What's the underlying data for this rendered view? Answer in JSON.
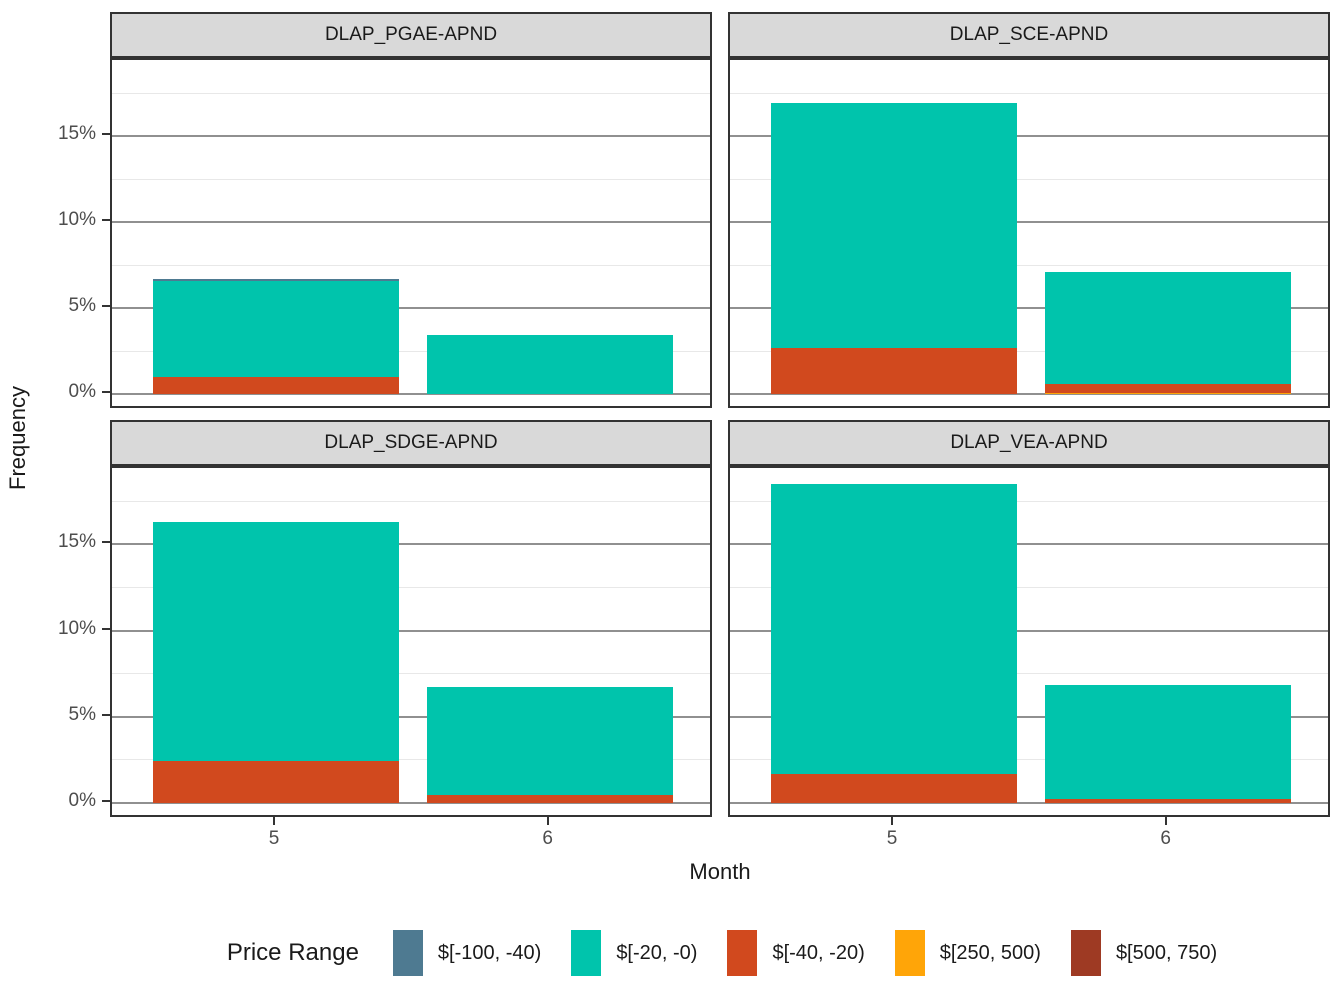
{
  "figure": {
    "y_axis_title": "Frequency",
    "x_axis_title": "Month"
  },
  "legend": {
    "title": "Price Range",
    "items": [
      {
        "label": "$[-100, -40)",
        "color": "#4e7a91"
      },
      {
        "label": "$[-20, -0)",
        "color": "#00c4ac"
      },
      {
        "label": "$[-40, -20)",
        "color": "#d1491e"
      },
      {
        "label": "$[250, 500)",
        "color": "#ffa508"
      },
      {
        "label": "$[500, 750)",
        "color": "#9e3a23"
      }
    ]
  },
  "chart_data": {
    "type": "bar",
    "stacked": true,
    "title": "",
    "xlabel": "Month",
    "ylabel": "Frequency",
    "categories": [
      "5",
      "6"
    ],
    "ylim": [
      -0.93,
      19.43
    ],
    "y_ticks": [
      {
        "value": 0,
        "label": "0%"
      },
      {
        "value": 5,
        "label": "5%"
      },
      {
        "value": 10,
        "label": "10%"
      },
      {
        "value": 15,
        "label": "15%"
      }
    ],
    "y_minor_ticks": [
      2.5,
      7.5,
      12.5,
      17.5
    ],
    "grid": "horizontal-only",
    "legend_position": "bottom",
    "stack_order_bottom_to_top": [
      "$[500, 750)",
      "$[250, 500)",
      "$[-40, -20)",
      "$[-20, -0)",
      "$[-100, -40)"
    ],
    "facets": [
      {
        "title": "DLAP_PGAE-APND",
        "bars": [
          {
            "month": "5",
            "segments": [
              {
                "key": "$[-40, -20)",
                "value": 1.0
              },
              {
                "key": "$[-20, -0)",
                "value": 5.55
              },
              {
                "key": "$[-100, -40)",
                "value": 0.12
              }
            ]
          },
          {
            "month": "6",
            "segments": [
              {
                "key": "$[-20, -0)",
                "value": 3.45
              }
            ]
          }
        ]
      },
      {
        "title": "DLAP_SCE-APND",
        "bars": [
          {
            "month": "5",
            "segments": [
              {
                "key": "$[-40, -20)",
                "value": 2.7
              },
              {
                "key": "$[-20, -0)",
                "value": 14.2
              }
            ]
          },
          {
            "month": "6",
            "segments": [
              {
                "key": "$[250, 500)",
                "value": 0.07
              },
              {
                "key": "$[-40, -20)",
                "value": 0.5
              },
              {
                "key": "$[-20, -0)",
                "value": 6.5
              }
            ]
          }
        ]
      },
      {
        "title": "DLAP_SDGE-APND",
        "bars": [
          {
            "month": "5",
            "segments": [
              {
                "key": "$[-40, -20)",
                "value": 2.45
              },
              {
                "key": "$[-20, -0)",
                "value": 13.85
              }
            ]
          },
          {
            "month": "6",
            "segments": [
              {
                "key": "$[-40, -20)",
                "value": 0.45
              },
              {
                "key": "$[-20, -0)",
                "value": 6.3
              }
            ]
          }
        ]
      },
      {
        "title": "DLAP_VEA-APND",
        "bars": [
          {
            "month": "5",
            "segments": [
              {
                "key": "$[-40, -20)",
                "value": 1.7
              },
              {
                "key": "$[-20, -0)",
                "value": 16.8
              }
            ]
          },
          {
            "month": "6",
            "segments": [
              {
                "key": "$[-40, -20)",
                "value": 0.25
              },
              {
                "key": "$[-20, -0)",
                "value": 6.6
              }
            ]
          }
        ]
      }
    ]
  },
  "style": {
    "strip_bg": "#d9d9d9",
    "panel_border": "#333333",
    "major_grid": "#909090",
    "minor_grid": "#e8e8e8",
    "tick_label_color": "#4d4d4d",
    "text_color": "#1a1a1a"
  }
}
